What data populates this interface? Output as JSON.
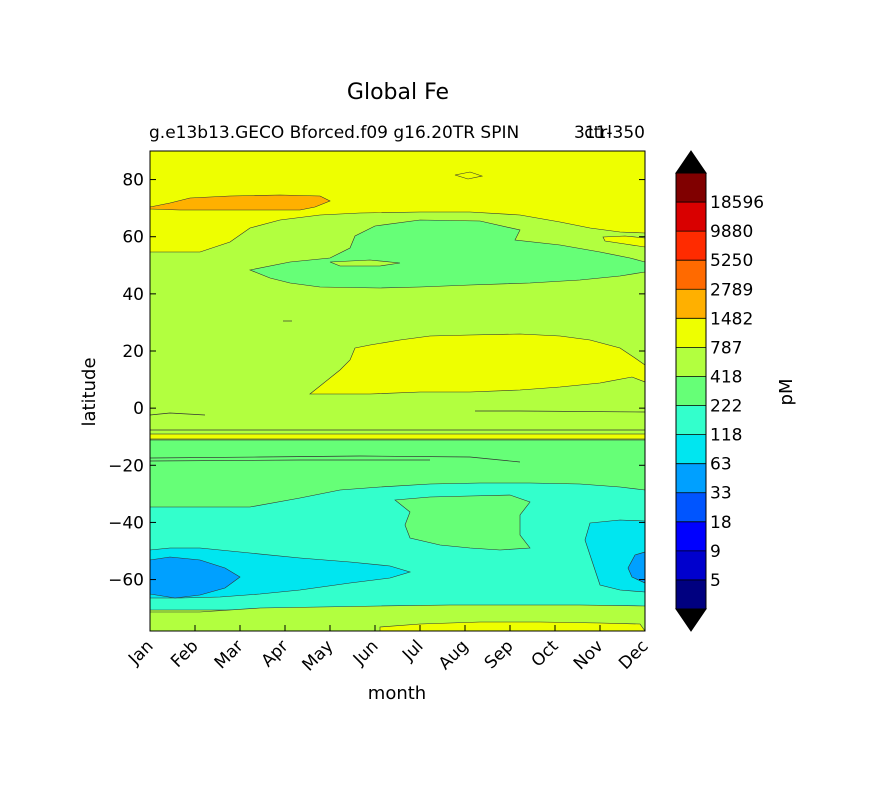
{
  "chart_data": {
    "type": "heatmap",
    "title": "Global Fe",
    "subtitle_left": "g.e13b13.GECO Bforced.f09 g16.20TR SPIN",
    "subtitle_right": "ctrl",
    "subtitle_year": "311-350",
    "xlabel": "month",
    "ylabel": "latitude",
    "x_ticks": [
      "Jan",
      "Feb",
      "Mar",
      "Apr",
      "May",
      "Jun",
      "Jul",
      "Aug",
      "Sep",
      "Oct",
      "Nov",
      "Dec"
    ],
    "y_ticks": [
      80,
      60,
      40,
      20,
      0,
      -20,
      -40,
      -60
    ],
    "y_tick_labels": [
      "80",
      "60",
      "40",
      "20",
      "0",
      "−20",
      "−40",
      "−60"
    ],
    "ylim": [
      -78,
      90
    ],
    "colorbar": {
      "label": "pM",
      "levels": [
        5,
        9,
        18,
        33,
        63,
        118,
        222,
        418,
        787,
        1482,
        2789,
        5250,
        9880,
        18596
      ],
      "level_labels": [
        "5",
        "9",
        "18",
        "33",
        "63",
        "118",
        "222",
        "418",
        "787",
        "1482",
        "2789",
        "5250",
        "9880",
        "18596"
      ],
      "colors": [
        "#000080",
        "#0000cd",
        "#0000ff",
        "#0055ff",
        "#00a0ff",
        "#00e6f0",
        "#33ffcc",
        "#66ff77",
        "#b2ff3f",
        "#eeff00",
        "#ffb000",
        "#ff6a00",
        "#ff2b00",
        "#d90000",
        "#800000"
      ],
      "under_color": "#000080",
      "over_color": "#000000"
    },
    "bands": [
      {
        "lat_range": [
          74,
          90
        ],
        "value": "787-1482"
      },
      {
        "lat_range": [
          70,
          75
        ],
        "value": "1482-2789",
        "months": [
          "Jan",
          "Apr"
        ]
      },
      {
        "lat_range": [
          54,
          74
        ],
        "value": "787-1482"
      },
      {
        "lat_range": [
          45,
          66
        ],
        "value": "222-418",
        "months": [
          "Apr",
          "Dec"
        ]
      },
      {
        "lat_range": [
          -10,
          54
        ],
        "value": "418-787"
      },
      {
        "lat_range": [
          4,
          25
        ],
        "value": "787-1482",
        "months": [
          "May",
          "Dec"
        ]
      },
      {
        "lat_range": [
          -12,
          -10
        ],
        "value": "787-1482"
      },
      {
        "lat_range": [
          -35,
          -12
        ],
        "value": "222-418"
      },
      {
        "lat_range": [
          -52,
          -35
        ],
        "value": "118-222"
      },
      {
        "lat_range": [
          -66,
          -52
        ],
        "value": "63-118"
      },
      {
        "lat_range": [
          -67,
          -52
        ],
        "value": "33-63",
        "months": [
          "Jan",
          "Feb"
        ]
      },
      {
        "lat_range": [
          -72,
          -66
        ],
        "value": "118-222"
      },
      {
        "lat_range": [
          -78,
          -72
        ],
        "value": "418-787"
      }
    ]
  }
}
